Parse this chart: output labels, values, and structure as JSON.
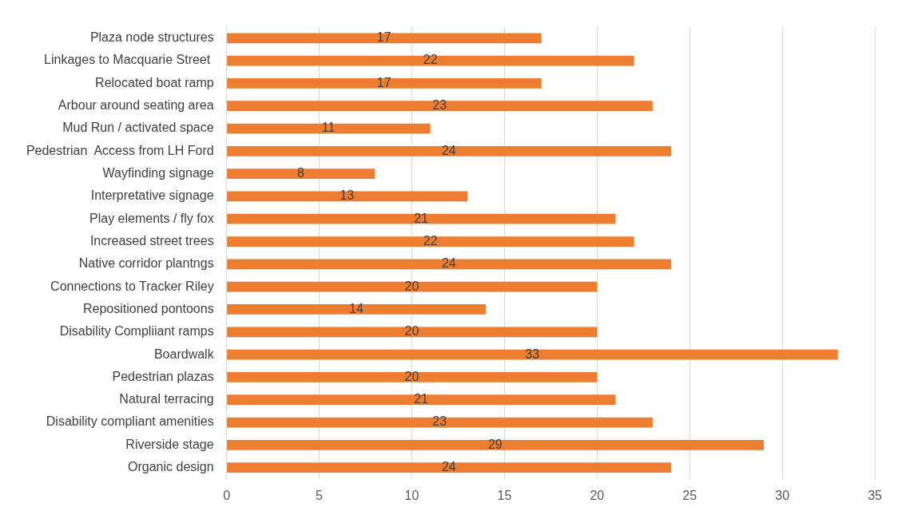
{
  "chart_data": {
    "type": "bar",
    "orientation": "horizontal",
    "categories": [
      "Plaza node structures",
      "Linkages to Macquarie Street ",
      "Relocated boat ramp",
      "Arbour around seating area",
      "Mud Run / activated space",
      "Pedestrian  Access from LH Ford",
      "Wayfinding signage",
      "Interpretative signage",
      "Play elements / fly fox",
      "Increased street trees",
      "Native corridor plantngs",
      "Connections to Tracker Riley",
      "Repositioned pontoons",
      "Disability Compliiant ramps",
      "Boardwalk",
      "Pedestrian plazas",
      "Natural terracing",
      "Disability compliant amenities",
      "Riverside stage",
      "Organic design"
    ],
    "values": [
      17,
      22,
      17,
      23,
      11,
      24,
      8,
      13,
      21,
      22,
      24,
      20,
      14,
      20,
      33,
      20,
      21,
      23,
      29,
      24
    ],
    "color": "#ed7d31",
    "xlim": [
      0,
      35
    ],
    "xticks": [
      0,
      5,
      10,
      15,
      20,
      25,
      30,
      35
    ],
    "grid": "x",
    "data_labels": true,
    "legend": false
  }
}
